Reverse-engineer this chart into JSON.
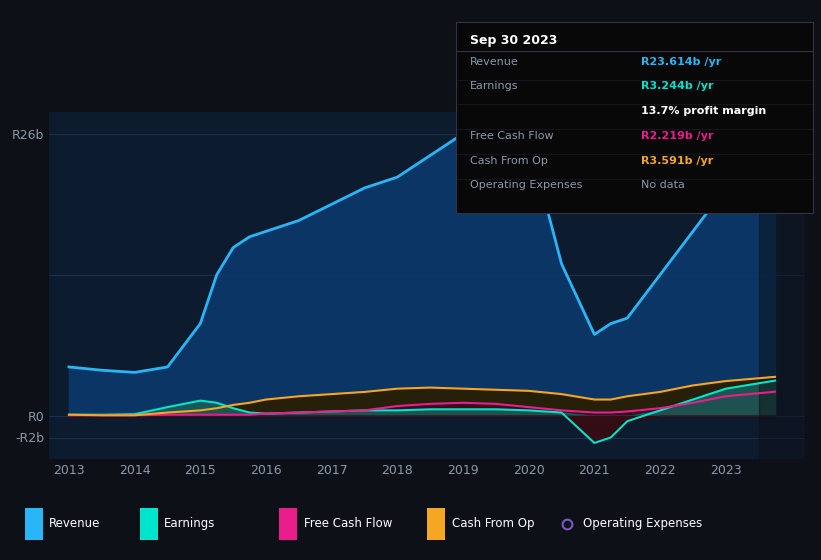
{
  "background_color": "#0d1117",
  "plot_bg_color": "#0d1b2e",
  "grid_color": "#1e3050",
  "text_color": "#8899aa",
  "title_color": "#ffffff",
  "years": [
    2013,
    2013.5,
    2014,
    2014.5,
    2015,
    2015.25,
    2015.5,
    2015.75,
    2016,
    2016.5,
    2017,
    2017.5,
    2018,
    2018.5,
    2019,
    2019.5,
    2020,
    2020.5,
    2021,
    2021.25,
    2021.5,
    2022,
    2022.5,
    2023,
    2023.75
  ],
  "revenue": [
    4.5,
    4.2,
    4.0,
    4.5,
    8.5,
    13.0,
    15.5,
    16.5,
    17.0,
    18.0,
    19.5,
    21.0,
    22.0,
    24.0,
    26.0,
    26.5,
    25.5,
    14.0,
    7.5,
    8.5,
    9.0,
    13.0,
    17.0,
    21.0,
    23.6
  ],
  "earnings": [
    0.1,
    0.1,
    0.15,
    0.8,
    1.4,
    1.2,
    0.7,
    0.3,
    0.2,
    0.3,
    0.4,
    0.5,
    0.5,
    0.6,
    0.6,
    0.6,
    0.5,
    0.3,
    -2.5,
    -2.0,
    -0.5,
    0.5,
    1.5,
    2.5,
    3.244
  ],
  "free_cash_flow": [
    0.05,
    0.05,
    0.05,
    0.1,
    0.1,
    0.1,
    0.1,
    0.1,
    0.2,
    0.3,
    0.4,
    0.5,
    0.9,
    1.1,
    1.2,
    1.1,
    0.8,
    0.5,
    0.3,
    0.3,
    0.4,
    0.7,
    1.2,
    1.8,
    2.219
  ],
  "cash_from_op": [
    0.1,
    0.05,
    0.05,
    0.3,
    0.5,
    0.7,
    1.0,
    1.2,
    1.5,
    1.8,
    2.0,
    2.2,
    2.5,
    2.6,
    2.5,
    2.4,
    2.3,
    2.0,
    1.5,
    1.5,
    1.8,
    2.2,
    2.8,
    3.2,
    3.591
  ],
  "revenue_color": "#29b6f6",
  "earnings_color": "#00e5cc",
  "free_cash_flow_color": "#e91e8c",
  "cash_from_op_color": "#f5a623",
  "op_expenses_color": "#7e57c2",
  "revenue_fill": "#0a3a6e",
  "earnings_fill_pos": "#1a5f5a",
  "earnings_fill_neg": "#5a1a3a",
  "free_cash_flow_fill": "#6e1a4a",
  "cash_from_op_fill": "#4a3a0a",
  "ylim": [
    -4,
    28
  ],
  "xlabel_year_positions": [
    2013,
    2014,
    2015,
    2016,
    2017,
    2018,
    2019,
    2020,
    2021,
    2022,
    2023
  ],
  "tooltip_date": "Sep 30 2023",
  "tooltip_rows": [
    {
      "label": "Revenue",
      "value": "R23.614b /yr",
      "value_color": "#29b6f6"
    },
    {
      "label": "Earnings",
      "value": "R3.244b /yr",
      "value_color": "#00e5cc"
    },
    {
      "label": "",
      "value": "13.7% profit margin",
      "value_color": "#ffffff"
    },
    {
      "label": "Free Cash Flow",
      "value": "R2.219b /yr",
      "value_color": "#e91e8c"
    },
    {
      "label": "Cash From Op",
      "value": "R3.591b /yr",
      "value_color": "#f5a623"
    },
    {
      "label": "Operating Expenses",
      "value": "No data",
      "value_color": "#8899aa"
    }
  ],
  "legend_items": [
    {
      "label": "Revenue",
      "color": "#29b6f6",
      "filled": true
    },
    {
      "label": "Earnings",
      "color": "#00e5cc",
      "filled": true
    },
    {
      "label": "Free Cash Flow",
      "color": "#e91e8c",
      "filled": true
    },
    {
      "label": "Cash From Op",
      "color": "#f5a623",
      "filled": true
    },
    {
      "label": "Operating Expenses",
      "color": "#7e57c2",
      "filled": false
    }
  ]
}
